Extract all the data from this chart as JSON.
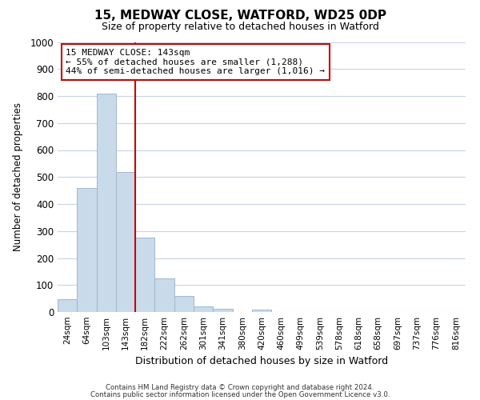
{
  "title": "15, MEDWAY CLOSE, WATFORD, WD25 0DP",
  "subtitle": "Size of property relative to detached houses in Watford",
  "xlabel": "Distribution of detached houses by size in Watford",
  "ylabel": "Number of detached properties",
  "bar_labels": [
    "24sqm",
    "64sqm",
    "103sqm",
    "143sqm",
    "182sqm",
    "222sqm",
    "262sqm",
    "301sqm",
    "341sqm",
    "380sqm",
    "420sqm",
    "460sqm",
    "499sqm",
    "539sqm",
    "578sqm",
    "618sqm",
    "658sqm",
    "697sqm",
    "737sqm",
    "776sqm",
    "816sqm"
  ],
  "bar_heights": [
    47,
    460,
    810,
    520,
    275,
    125,
    58,
    22,
    12,
    0,
    8,
    0,
    0,
    0,
    0,
    0,
    0,
    0,
    0,
    0,
    0
  ],
  "bar_color": "#c9daea",
  "bar_edge_color": "#a0b8cc",
  "vline_x": 3.5,
  "vline_color": "#cc0000",
  "annotation_text": "15 MEDWAY CLOSE: 143sqm\n← 55% of detached houses are smaller (1,288)\n44% of semi-detached houses are larger (1,016) →",
  "annotation_box_color": "#ffffff",
  "annotation_box_edge_color": "#cc0000",
  "ylim": [
    0,
    1000
  ],
  "yticks": [
    0,
    100,
    200,
    300,
    400,
    500,
    600,
    700,
    800,
    900,
    1000
  ],
  "footer_line1": "Contains HM Land Registry data © Crown copyright and database right 2024.",
  "footer_line2": "Contains public sector information licensed under the Open Government Licence v3.0.",
  "background_color": "#ffffff",
  "grid_color": "#c8d4e8"
}
